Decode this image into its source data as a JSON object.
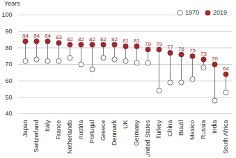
{
  "chart_data": {
    "type": "dumbbell",
    "y_label": "Years",
    "categories": [
      "Japan",
      "Switzerland",
      "Italy",
      "France",
      "Netherlands",
      "Austria",
      "Portugal",
      "Greece",
      "Denmark",
      "UK",
      "Germany",
      "United States",
      "Turkey",
      "China",
      "Brazil",
      "Mexico",
      "Russia",
      "India",
      "South Africa"
    ],
    "series": [
      {
        "name": "1970",
        "color": "#6e6e6e",
        "marker": "open circle",
        "values": [
          72,
          73,
          72,
          72,
          74,
          70,
          67,
          74,
          73,
          72,
          71,
          71,
          54,
          59,
          59,
          61,
          68,
          48,
          53
        ]
      },
      {
        "name": "2019",
        "color": "#9b2a2d",
        "marker": "circle",
        "data_labels": true,
        "values": [
          84,
          84,
          84,
          83,
          82,
          82,
          82,
          82,
          82,
          81,
          81,
          79,
          79,
          77,
          76,
          75,
          73,
          70,
          64
        ]
      }
    ],
    "ylim": [
      40,
      100
    ],
    "yticks": [
      40,
      50,
      60,
      70,
      80,
      90,
      100
    ],
    "grid": true,
    "legend": "upper right"
  }
}
